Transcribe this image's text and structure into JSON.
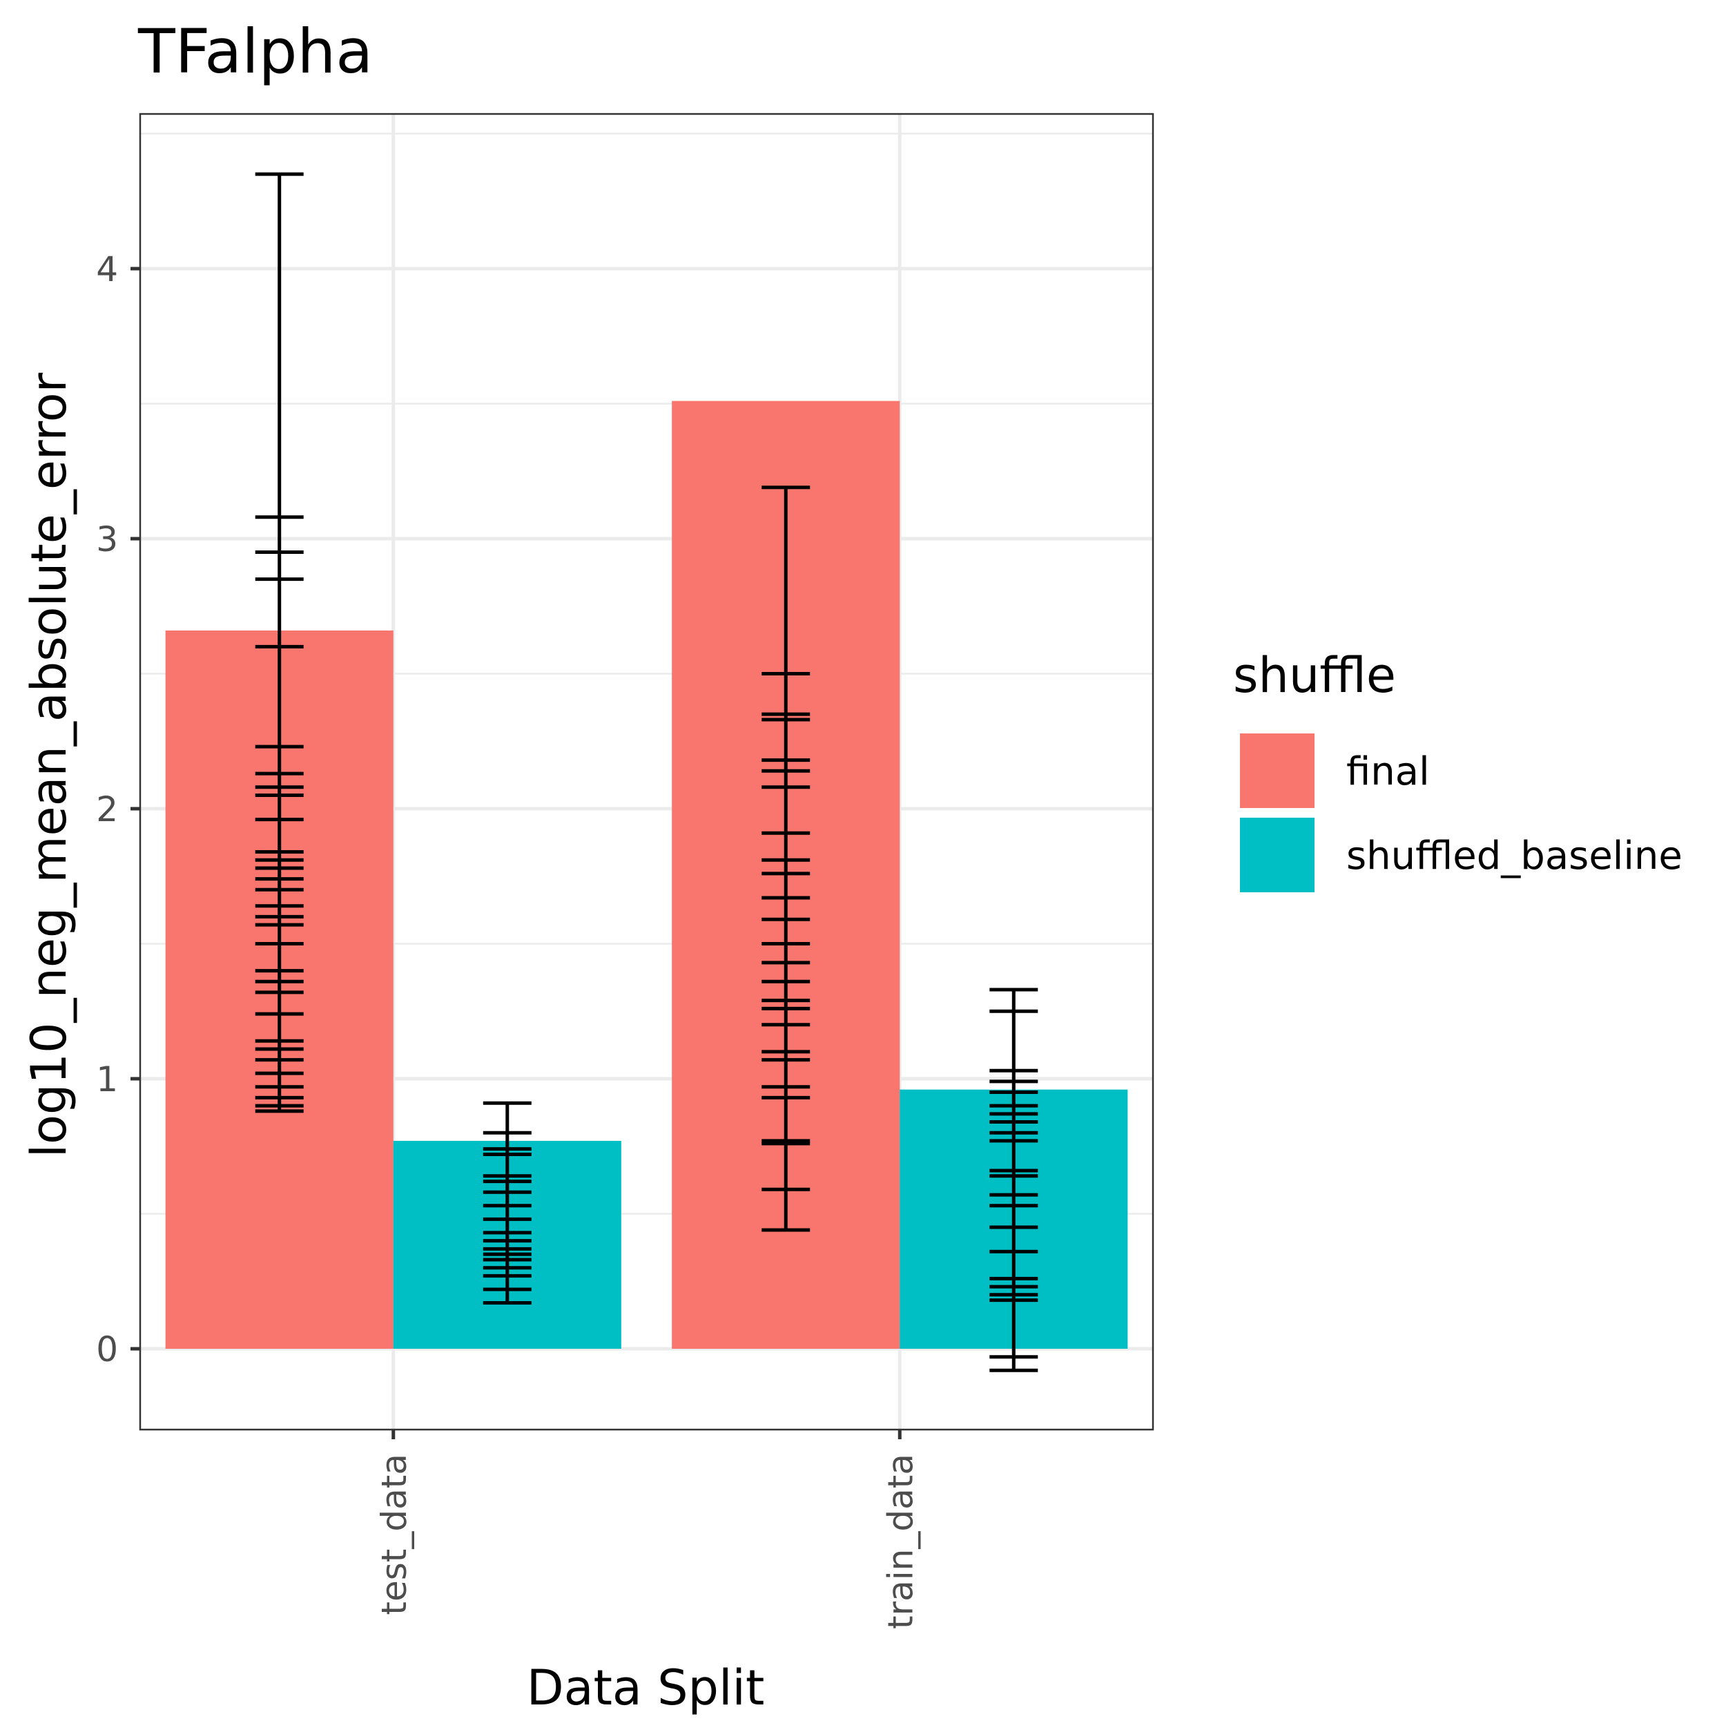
{
  "chart_data": {
    "type": "bar",
    "title": "TFalpha",
    "xlabel": "Data Split",
    "ylabel": "log10_neg_mean_absolute_error",
    "categories": [
      "test_data",
      "train_data"
    ],
    "ylim": [
      -0.3,
      4.55
    ],
    "yticks": [
      0,
      1,
      2,
      3,
      4
    ],
    "grid": true,
    "legend": {
      "title": "shuffle",
      "position": "right"
    },
    "series": [
      {
        "name": "final",
        "color": "#F8766D",
        "values": [
          2.66,
          3.51
        ],
        "error_bars": [
          [
            0.88,
            0.9,
            0.93,
            0.97,
            1.02,
            1.07,
            1.11,
            1.14,
            1.24,
            1.32,
            1.36,
            1.4,
            1.5,
            1.57,
            1.6,
            1.64,
            1.7,
            1.74,
            1.78,
            1.81,
            1.84,
            1.96,
            2.05,
            2.08,
            2.13,
            2.23,
            2.6,
            2.85,
            2.95,
            3.08,
            4.35
          ],
          [
            0.44,
            0.59,
            0.76,
            0.77,
            0.93,
            0.97,
            1.07,
            1.1,
            1.2,
            1.26,
            1.29,
            1.36,
            1.43,
            1.5,
            1.59,
            1.67,
            1.76,
            1.81,
            1.91,
            2.08,
            2.14,
            2.18,
            2.33,
            2.35,
            2.5,
            3.19
          ]
        ]
      },
      {
        "name": "shuffled_baseline",
        "color": "#00BFC4",
        "values": [
          0.77,
          0.96
        ],
        "error_bars": [
          [
            0.17,
            0.22,
            0.27,
            0.3,
            0.33,
            0.35,
            0.37,
            0.4,
            0.43,
            0.48,
            0.53,
            0.58,
            0.62,
            0.64,
            0.72,
            0.74,
            0.8,
            0.91
          ],
          [
            -0.08,
            -0.03,
            0.18,
            0.2,
            0.23,
            0.26,
            0.36,
            0.45,
            0.53,
            0.57,
            0.64,
            0.66,
            0.77,
            0.8,
            0.84,
            0.87,
            0.9,
            0.95,
            0.99,
            1.03,
            1.25,
            1.33
          ]
        ]
      }
    ]
  }
}
